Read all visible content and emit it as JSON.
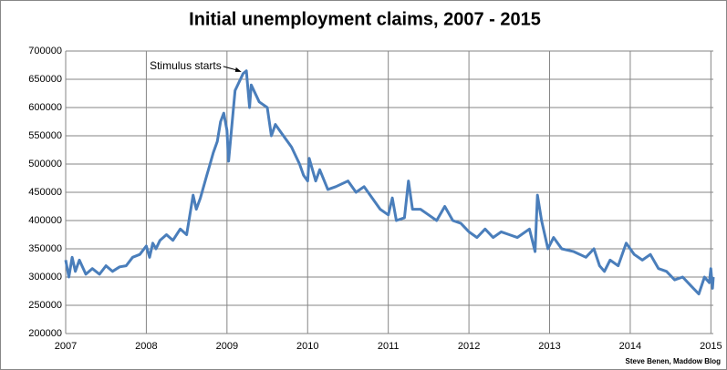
{
  "chart_data": {
    "type": "line",
    "title": "Initial unemployment claims, 2007 - 2015",
    "annotation": "Stimulus starts",
    "annotation_x": 2009.18,
    "annotation_y": 668000,
    "source": "Steve Benen, Maddow Blog",
    "x": [
      2007.0,
      2007.04,
      2007.08,
      2007.12,
      2007.17,
      2007.25,
      2007.33,
      2007.42,
      2007.5,
      2007.58,
      2007.67,
      2007.75,
      2007.83,
      2007.92,
      2008.0,
      2008.04,
      2008.08,
      2008.12,
      2008.17,
      2008.25,
      2008.33,
      2008.42,
      2008.5,
      2008.58,
      2008.62,
      2008.67,
      2008.75,
      2008.79,
      2008.83,
      2008.88,
      2008.92,
      2008.96,
      2009.0,
      2009.02,
      2009.1,
      2009.2,
      2009.24,
      2009.28,
      2009.3,
      2009.4,
      2009.5,
      2009.55,
      2009.6,
      2009.7,
      2009.8,
      2009.9,
      2009.95,
      2010.0,
      2010.02,
      2010.1,
      2010.15,
      2010.25,
      2010.35,
      2010.5,
      2010.6,
      2010.7,
      2010.8,
      2010.9,
      2011.0,
      2011.05,
      2011.1,
      2011.2,
      2011.25,
      2011.3,
      2011.4,
      2011.5,
      2011.6,
      2011.7,
      2011.8,
      2011.9,
      2012.0,
      2012.1,
      2012.2,
      2012.3,
      2012.4,
      2012.5,
      2012.6,
      2012.75,
      2012.82,
      2012.85,
      2012.9,
      2012.98,
      2013.05,
      2013.15,
      2013.3,
      2013.45,
      2013.55,
      2013.62,
      2013.68,
      2013.75,
      2013.85,
      2013.95,
      2014.05,
      2014.15,
      2014.25,
      2014.35,
      2014.45,
      2014.55,
      2014.65,
      2014.75,
      2014.85,
      2014.92,
      2014.98,
      2015.0,
      2015.02,
      2015.03
    ],
    "series": [
      {
        "name": "Initial claims",
        "color": "#4a7ebb",
        "values": [
          330000,
          300000,
          335000,
          310000,
          330000,
          305000,
          315000,
          305000,
          320000,
          310000,
          318000,
          320000,
          335000,
          340000,
          355000,
          335000,
          360000,
          350000,
          365000,
          375000,
          365000,
          385000,
          375000,
          445000,
          420000,
          440000,
          480000,
          500000,
          520000,
          540000,
          575000,
          590000,
          560000,
          505000,
          630000,
          660000,
          665000,
          600000,
          640000,
          610000,
          600000,
          550000,
          570000,
          550000,
          530000,
          500000,
          480000,
          470000,
          510000,
          470000,
          490000,
          455000,
          460000,
          470000,
          450000,
          460000,
          440000,
          420000,
          410000,
          440000,
          400000,
          405000,
          470000,
          420000,
          420000,
          410000,
          400000,
          425000,
          400000,
          395000,
          380000,
          370000,
          385000,
          370000,
          380000,
          375000,
          370000,
          385000,
          345000,
          445000,
          400000,
          350000,
          370000,
          350000,
          345000,
          335000,
          350000,
          320000,
          310000,
          330000,
          320000,
          360000,
          340000,
          330000,
          340000,
          315000,
          310000,
          295000,
          300000,
          285000,
          270000,
          300000,
          290000,
          315000,
          280000,
          300000
        ]
      }
    ],
    "xlim": [
      2007,
      2015.03
    ],
    "xticks": [
      2007,
      2008,
      2009,
      2010,
      2011,
      2012,
      2013,
      2014,
      2015
    ],
    "ylim": [
      200000,
      700000
    ],
    "yticks": [
      200000,
      250000,
      300000,
      350000,
      400000,
      450000,
      500000,
      550000,
      600000,
      650000,
      700000
    ],
    "grid": true
  }
}
